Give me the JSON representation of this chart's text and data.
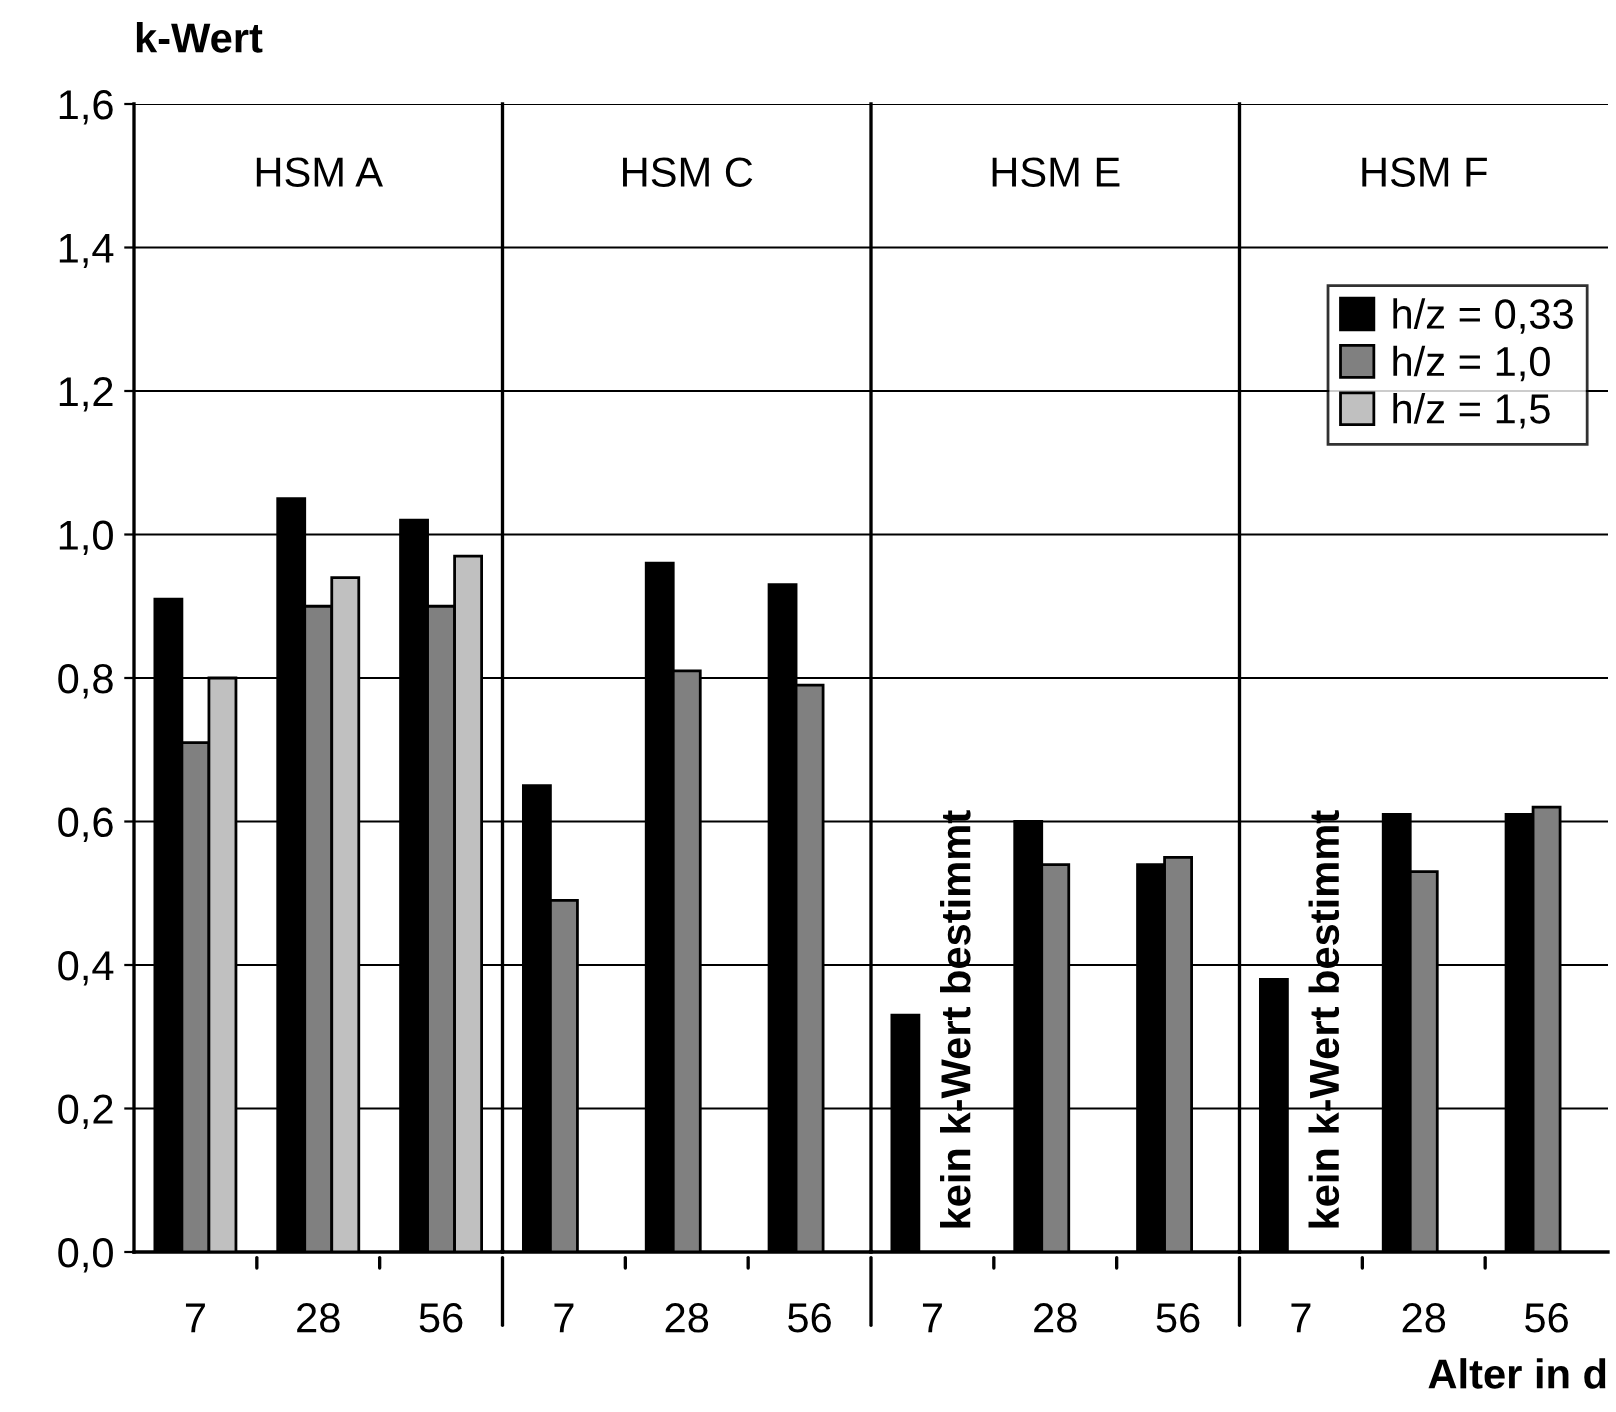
{
  "chart_data": {
    "type": "bar",
    "ylabel": "k-Wert",
    "xlabel": "Alter in d",
    "categories": [
      "7",
      "28",
      "56",
      "7",
      "28",
      "56",
      "7",
      "28",
      "56",
      "7",
      "28",
      "56"
    ],
    "series": [
      {
        "name": "h/z = 0,33",
        "color": "#000000",
        "values": [
          0.91,
          1.05,
          1.02,
          0.65,
          0.96,
          0.93,
          0.33,
          0.6,
          0.54,
          0.38,
          0.61,
          0.61
        ]
      },
      {
        "name": "h/z = 1,0",
        "color": "#808080",
        "values": [
          0.71,
          0.9,
          0.9,
          0.49,
          0.81,
          0.79,
          null,
          0.54,
          0.55,
          null,
          0.53,
          0.62
        ]
      },
      {
        "name": "h/z = 1,5",
        "color": "#c0c0c0",
        "values": [
          0.8,
          0.94,
          0.97,
          null,
          null,
          null,
          null,
          null,
          null,
          null,
          null,
          null
        ]
      }
    ],
    "annotations": [
      "HSM A",
      "HSM C",
      "HSM E",
      "HSM F",
      "kein k-Wert bestimmt",
      "kein k-Wert bestimmt"
    ],
    "ylim": [
      0,
      1.6
    ],
    "yticks": [
      {
        "value": 0,
        "label": "0,0"
      },
      {
        "value": 0.2,
        "label": "0,2"
      },
      {
        "value": 0.4,
        "label": "0,4"
      },
      {
        "value": 0.6,
        "label": "0,6"
      },
      {
        "value": 0.8,
        "label": "0,8"
      },
      {
        "value": 1.0,
        "label": "1,0"
      },
      {
        "value": 1.2,
        "label": "1,2"
      },
      {
        "value": 1.4,
        "label": "1,4"
      },
      {
        "value": 1.6,
        "label": "1,6"
      }
    ],
    "grid": "y",
    "legend": "top right"
  }
}
